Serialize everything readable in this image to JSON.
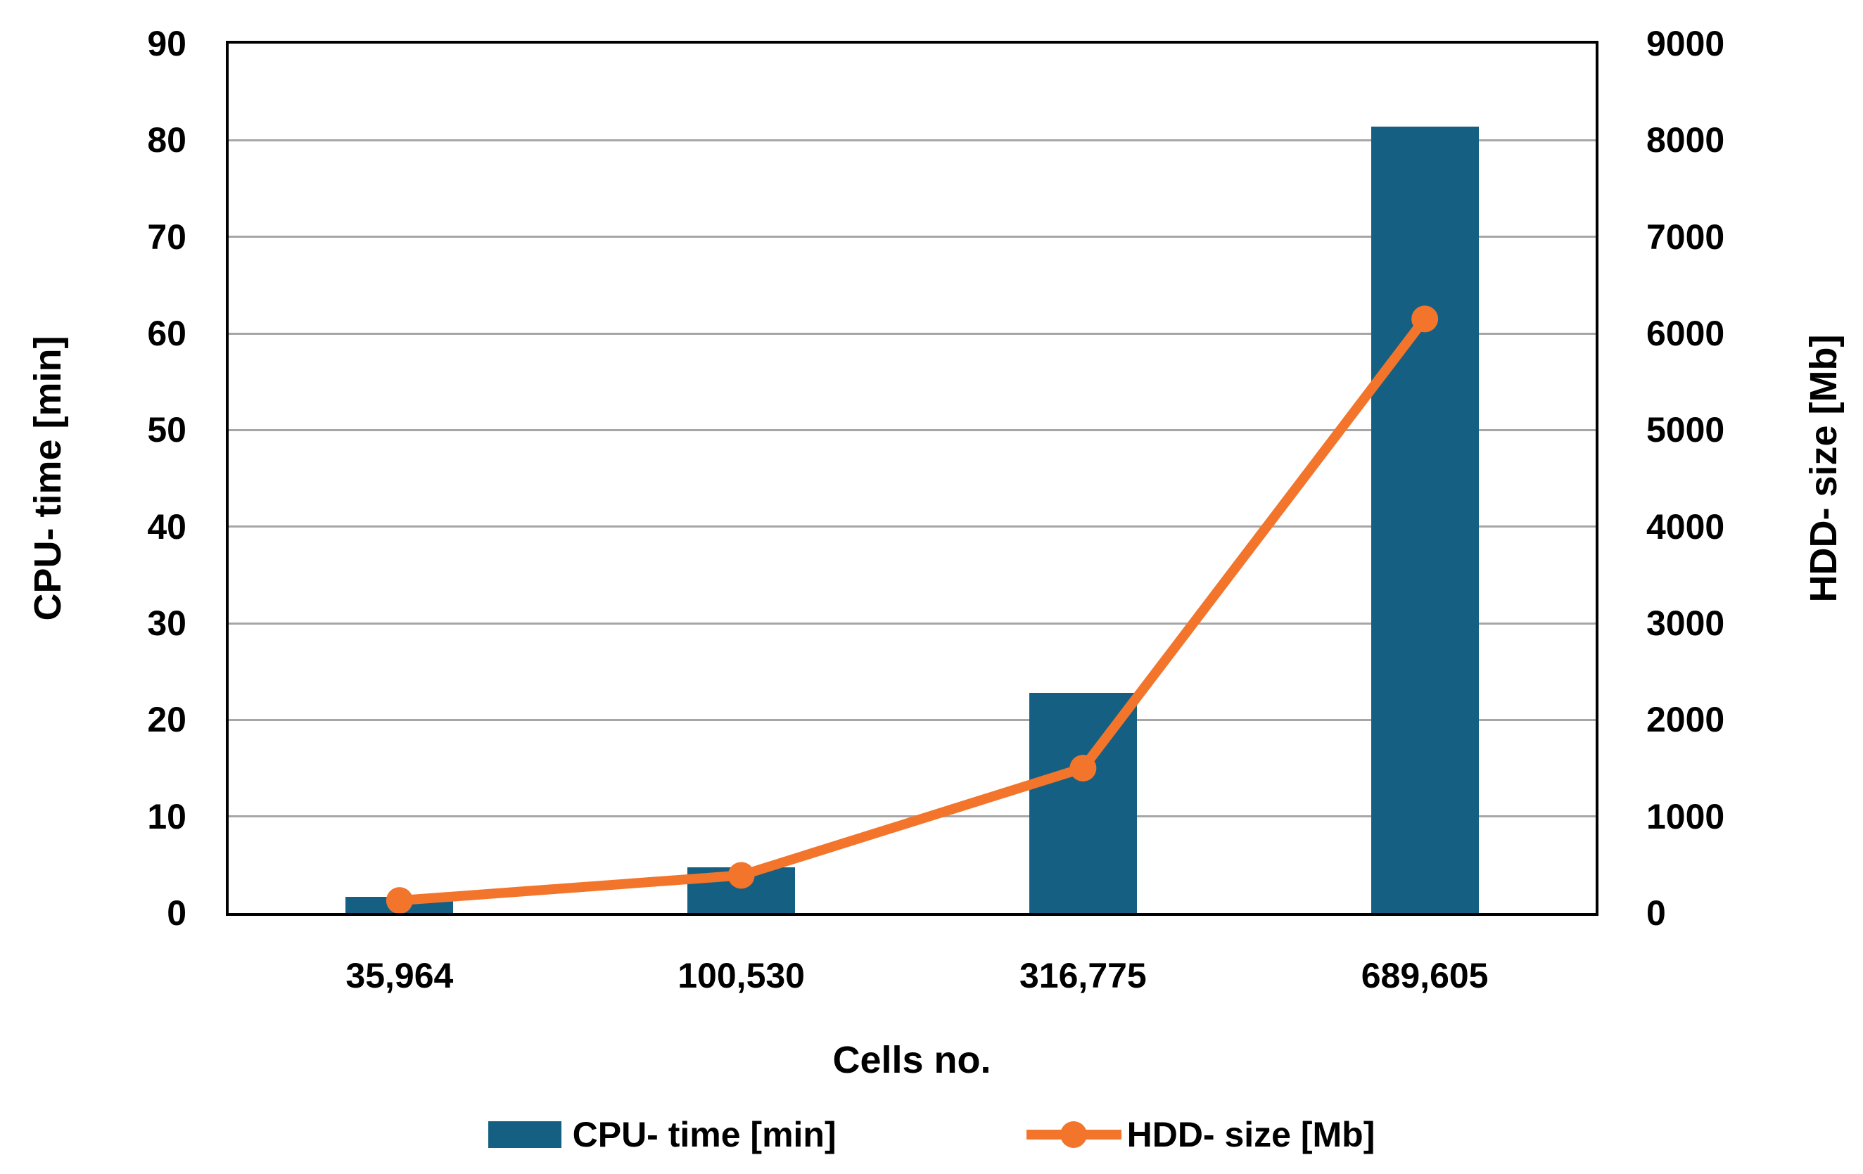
{
  "chart_data": {
    "type": "bar",
    "subtype": "combo-bar-line-dual-axis",
    "categories": [
      "35,964",
      "100,530",
      "316,775",
      "689,605"
    ],
    "series": [
      {
        "name": "CPU- time [min]",
        "type": "bar",
        "axis": "left",
        "color": "#156082",
        "values": [
          1.7,
          4.7,
          22.8,
          81.4
        ]
      },
      {
        "name": "HDD- size [Mb]",
        "type": "line",
        "axis": "right",
        "color": "#F3752C",
        "values": [
          130,
          390,
          1500,
          6150
        ]
      }
    ],
    "title": "",
    "xlabel": "Cells no.",
    "left_axis": {
      "label": "CPU- time [min]",
      "min": 0,
      "max": 90,
      "step": 10,
      "ticks": [
        "0",
        "10",
        "20",
        "30",
        "40",
        "50",
        "60",
        "70",
        "80",
        "90"
      ]
    },
    "right_axis": {
      "label": "HDD- size [Mb]",
      "min": 0,
      "max": 9000,
      "step": 1000,
      "ticks": [
        "0",
        "1000",
        "2000",
        "3000",
        "4000",
        "5000",
        "6000",
        "7000",
        "8000",
        "9000"
      ]
    },
    "grid": true,
    "legend_position": "bottom",
    "colors": {
      "gridline": "#A6A6A6",
      "plot_border": "#000000",
      "text": "#000000",
      "background": "#FFFFFF"
    }
  }
}
